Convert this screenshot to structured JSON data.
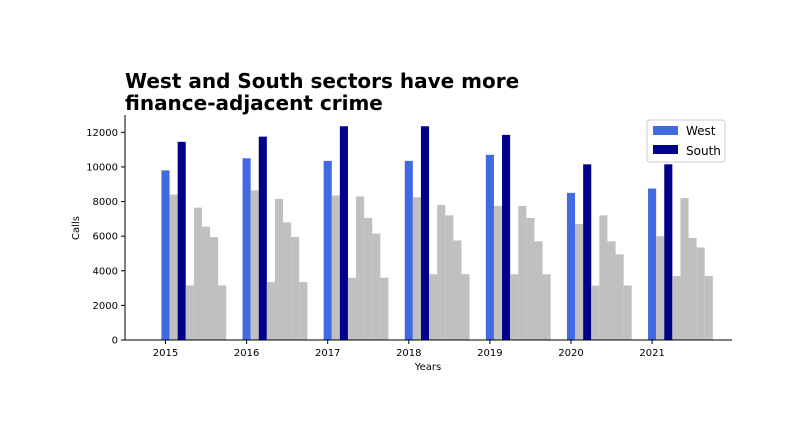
{
  "chart_data": {
    "type": "bar",
    "title_lines": [
      "West and South sectors have more",
      "finance-adjacent crime"
    ],
    "xlabel": "Years",
    "ylabel": "Calls",
    "ylim": [
      0,
      13000
    ],
    "yticks": [
      0,
      2000,
      4000,
      6000,
      8000,
      10000,
      12000
    ],
    "categories": [
      "2015",
      "2016",
      "2017",
      "2018",
      "2019",
      "2020",
      "2021"
    ],
    "series": [
      {
        "name": "West",
        "color": "#4169e1",
        "values": [
          9800,
          10500,
          10350,
          10350,
          10700,
          8500,
          8750
        ]
      },
      {
        "name": "",
        "color": "#c0c0c0",
        "values": [
          8400,
          8650,
          8350,
          8250,
          7750,
          6700,
          6000
        ]
      },
      {
        "name": "South",
        "color": "#00008b",
        "values": [
          11450,
          11750,
          12350,
          12350,
          11850,
          10150,
          10150
        ]
      },
      {
        "name": "",
        "color": "#c0c0c0",
        "values": [
          3150,
          3350,
          3600,
          3800,
          3800,
          3150,
          3700
        ]
      },
      {
        "name": "",
        "color": "#c0c0c0",
        "values": [
          7650,
          8150,
          8300,
          7800,
          7750,
          7200,
          8200
        ]
      },
      {
        "name": "",
        "color": "#c0c0c0",
        "values": [
          6550,
          6800,
          7050,
          7200,
          7050,
          5700,
          5900
        ]
      },
      {
        "name": "",
        "color": "#c0c0c0",
        "values": [
          5950,
          5950,
          6150,
          5750,
          5700,
          4950,
          5350
        ]
      },
      {
        "name": "",
        "color": "#c0c0c0",
        "values": [
          3150,
          3350,
          3600,
          3800,
          3800,
          3150,
          3700
        ]
      }
    ],
    "legend": {
      "position": "top-right",
      "entries": [
        "West",
        "South"
      ]
    },
    "grid": false
  }
}
